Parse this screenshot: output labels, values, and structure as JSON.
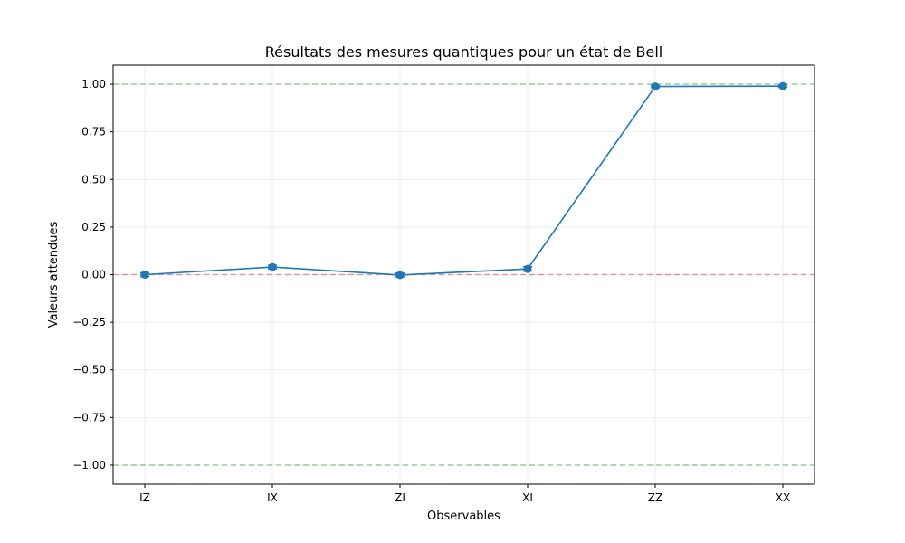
{
  "chart_data": {
    "type": "line",
    "title": "Résultats des mesures quantiques pour un état de Bell",
    "xlabel": "Observables",
    "ylabel": "Valeurs attendues",
    "categories": [
      "IZ",
      "IX",
      "ZI",
      "XI",
      "ZZ",
      "XX"
    ],
    "series": [
      {
        "values": [
          0.0,
          0.04,
          -0.002,
          0.03,
          0.988,
          0.99
        ],
        "errors": [
          0.01,
          0.01,
          0.01,
          0.012,
          0.006,
          0.006
        ],
        "color": "#1f77b4"
      }
    ],
    "reference_lines": [
      {
        "y": 1.0,
        "color": "#2ca02c"
      },
      {
        "y": 0.0,
        "color": "#d62728"
      },
      {
        "y": -1.0,
        "color": "#2ca02c"
      }
    ],
    "ylim": [
      -1.1,
      1.1
    ],
    "yticks": [
      1.0,
      0.75,
      0.5,
      0.25,
      0.0,
      -0.25,
      -0.5,
      -0.75,
      -1.0
    ],
    "ytick_labels": [
      "1.00",
      "0.75",
      "0.50",
      "0.25",
      "0.00",
      "−0.25",
      "−0.50",
      "−0.75",
      "−1.00"
    ],
    "grid": true
  }
}
